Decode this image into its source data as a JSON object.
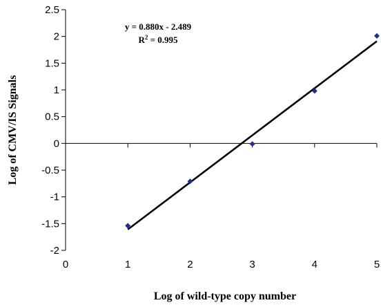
{
  "chart_data": {
    "type": "scatter",
    "xlabel": "Log of wild-type copy number",
    "ylabel": "Log of CMV/IS Signals",
    "xlim": [
      0,
      5
    ],
    "ylim": [
      -2,
      2.5
    ],
    "x_ticks": [
      0,
      1,
      2,
      3,
      4,
      5
    ],
    "y_ticks": [
      -2,
      -1.5,
      -1,
      -0.5,
      0,
      0.5,
      1,
      1.5,
      2,
      2.5
    ],
    "x_tick_labels": [
      "0",
      "1",
      "2",
      "3",
      "4",
      "5"
    ],
    "y_tick_labels": [
      "-2",
      "-1.5",
      "-1",
      "-0.5",
      "0",
      "0.5",
      "1",
      "1.5",
      "2",
      "2.5"
    ],
    "grid": false,
    "series": [
      {
        "x": [
          1,
          2,
          3,
          4,
          5
        ],
        "y": [
          -1.54,
          -0.71,
          -0.01,
          0.98,
          2.01
        ],
        "marker": "diamond",
        "color": "#1f2f8f"
      }
    ],
    "trendline": {
      "slope": 0.88,
      "intercept": -2.489,
      "x_range": [
        1,
        5
      ],
      "color": "#000000"
    },
    "annotations": {
      "equation": "y = 0.880x - 2.489",
      "r2_prefix": "R",
      "r2_sup": "2",
      "r2_suffix": " = 0.995"
    }
  }
}
